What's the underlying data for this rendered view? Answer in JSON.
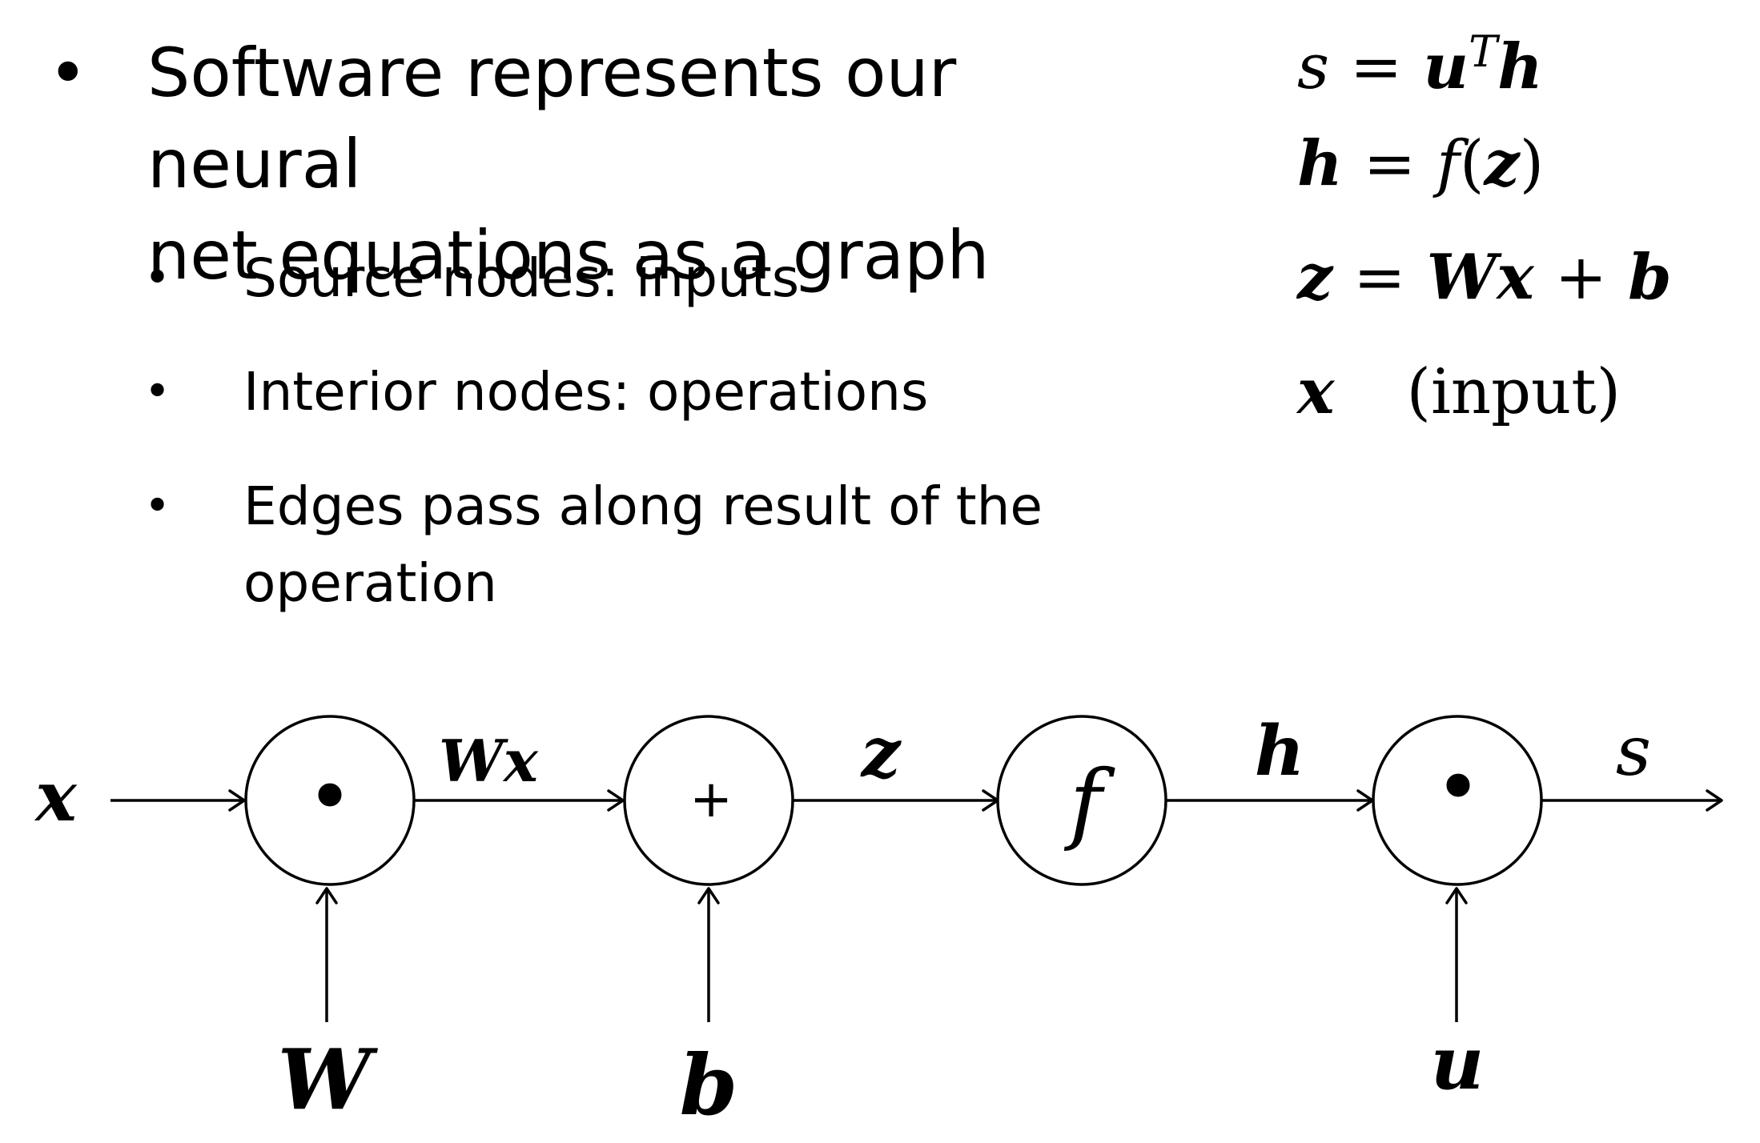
{
  "bullets": {
    "main": {
      "marker": "•",
      "text_line1": "Software represents our neural",
      "text_line2": "net equations as a graph"
    },
    "sub": [
      {
        "marker": "•",
        "line1": "Source nodes: inputs",
        "line2": ""
      },
      {
        "marker": "•",
        "line1": "Interior nodes: operations",
        "line2": ""
      },
      {
        "marker": "•",
        "line1": "Edges pass along result of the",
        "line2": "operation"
      }
    ]
  },
  "equations": {
    "eq1": {
      "lhs": "s",
      "op": "=",
      "rhs_a": "u",
      "sup": "T",
      "rhs_b": "h"
    },
    "eq2": {
      "lhs": "h",
      "op": "=",
      "rhs_fn": "f",
      "open": "(",
      "arg": "z",
      "close": ")"
    },
    "eq3": {
      "lhs": "z",
      "op": "=",
      "w": "W",
      "x": "x",
      "plus": "+",
      "b": "b"
    },
    "eq4": {
      "lhs": "x",
      "note": "(input)"
    }
  },
  "graph": {
    "input_x": "x",
    "node_dot1": "•",
    "node_plus": "+",
    "node_f": "f",
    "node_dot2": "•",
    "edge_wx_w": "W",
    "edge_wx_x": "x",
    "edge_z": "z",
    "edge_h": "h",
    "edge_s": "s",
    "input_W": "W",
    "input_b": "b",
    "input_u": "u"
  }
}
